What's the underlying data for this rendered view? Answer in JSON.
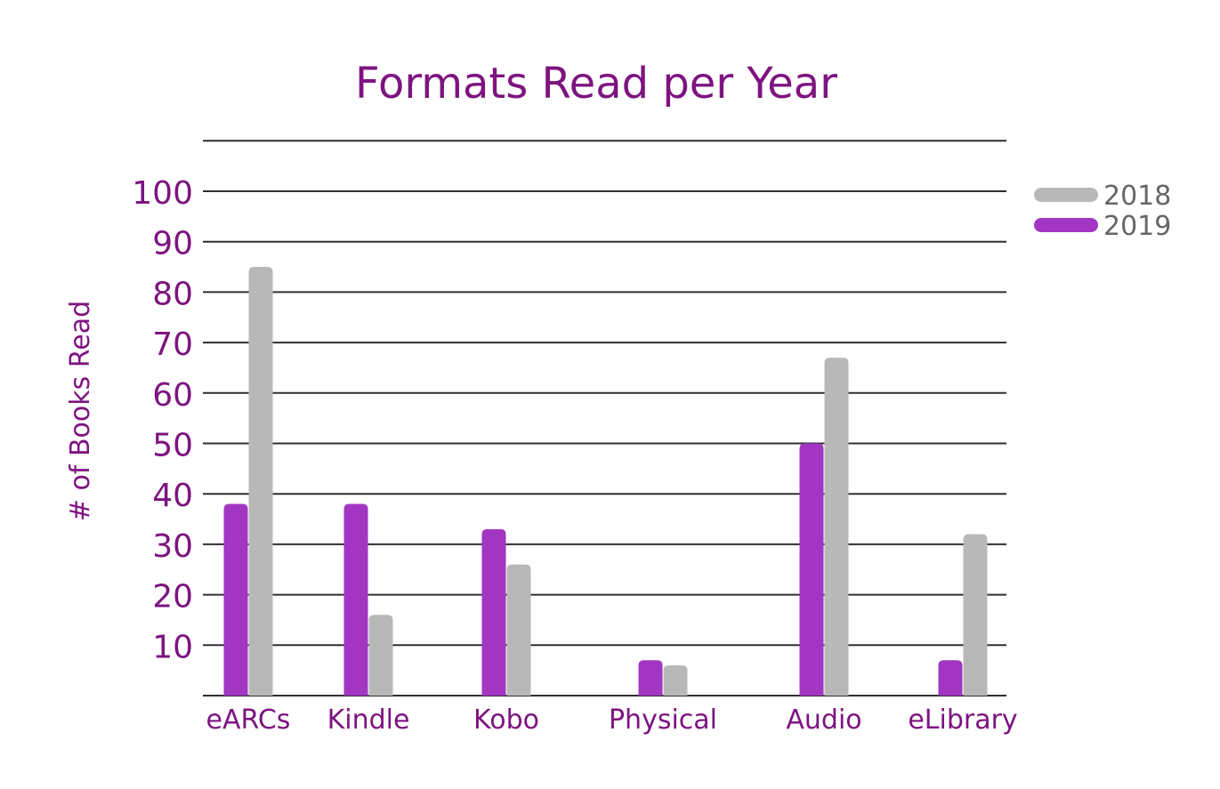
{
  "chart_data": {
    "type": "bar",
    "title": "Formats Read per Year",
    "xlabel": "",
    "ylabel": "# of Books Read",
    "categories": [
      "eARCs",
      "Kindle",
      "Kobo",
      "Physical",
      "Audio",
      "eLibrary"
    ],
    "series": [
      {
        "name": "2019",
        "color": "#a236c2",
        "values": [
          38,
          38,
          33,
          7,
          50,
          7
        ]
      },
      {
        "name": "2018",
        "color": "#b8b8b8",
        "values": [
          85,
          16,
          26,
          6,
          67,
          32
        ]
      }
    ],
    "ylim": [
      0,
      110
    ],
    "yticks": [
      10,
      20,
      30,
      40,
      50,
      60,
      70,
      80,
      90,
      100
    ],
    "grid": true,
    "legend": "top-right",
    "legend_order": [
      "2018",
      "2019"
    ]
  }
}
